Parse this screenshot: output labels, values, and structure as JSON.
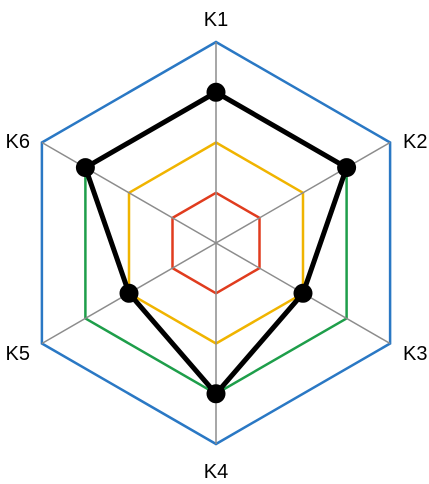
{
  "chart_data": {
    "type": "radar",
    "axes": [
      "K1",
      "K2",
      "K3",
      "K4",
      "K5",
      "K6"
    ],
    "range": [
      0,
      4
    ],
    "rings": [
      {
        "level": 1,
        "color": "#E03C1E"
      },
      {
        "level": 2,
        "color": "#F0B400"
      },
      {
        "level": 3,
        "color": "#1E9E4A"
      },
      {
        "level": 4,
        "color": "#2A78C4"
      }
    ],
    "grid_color": "#8C8C8C",
    "series": [
      {
        "values": [
          3.0,
          3.0,
          2.0,
          3.0,
          2.0,
          3.0
        ],
        "color": "#000000"
      }
    ],
    "legend": false
  }
}
